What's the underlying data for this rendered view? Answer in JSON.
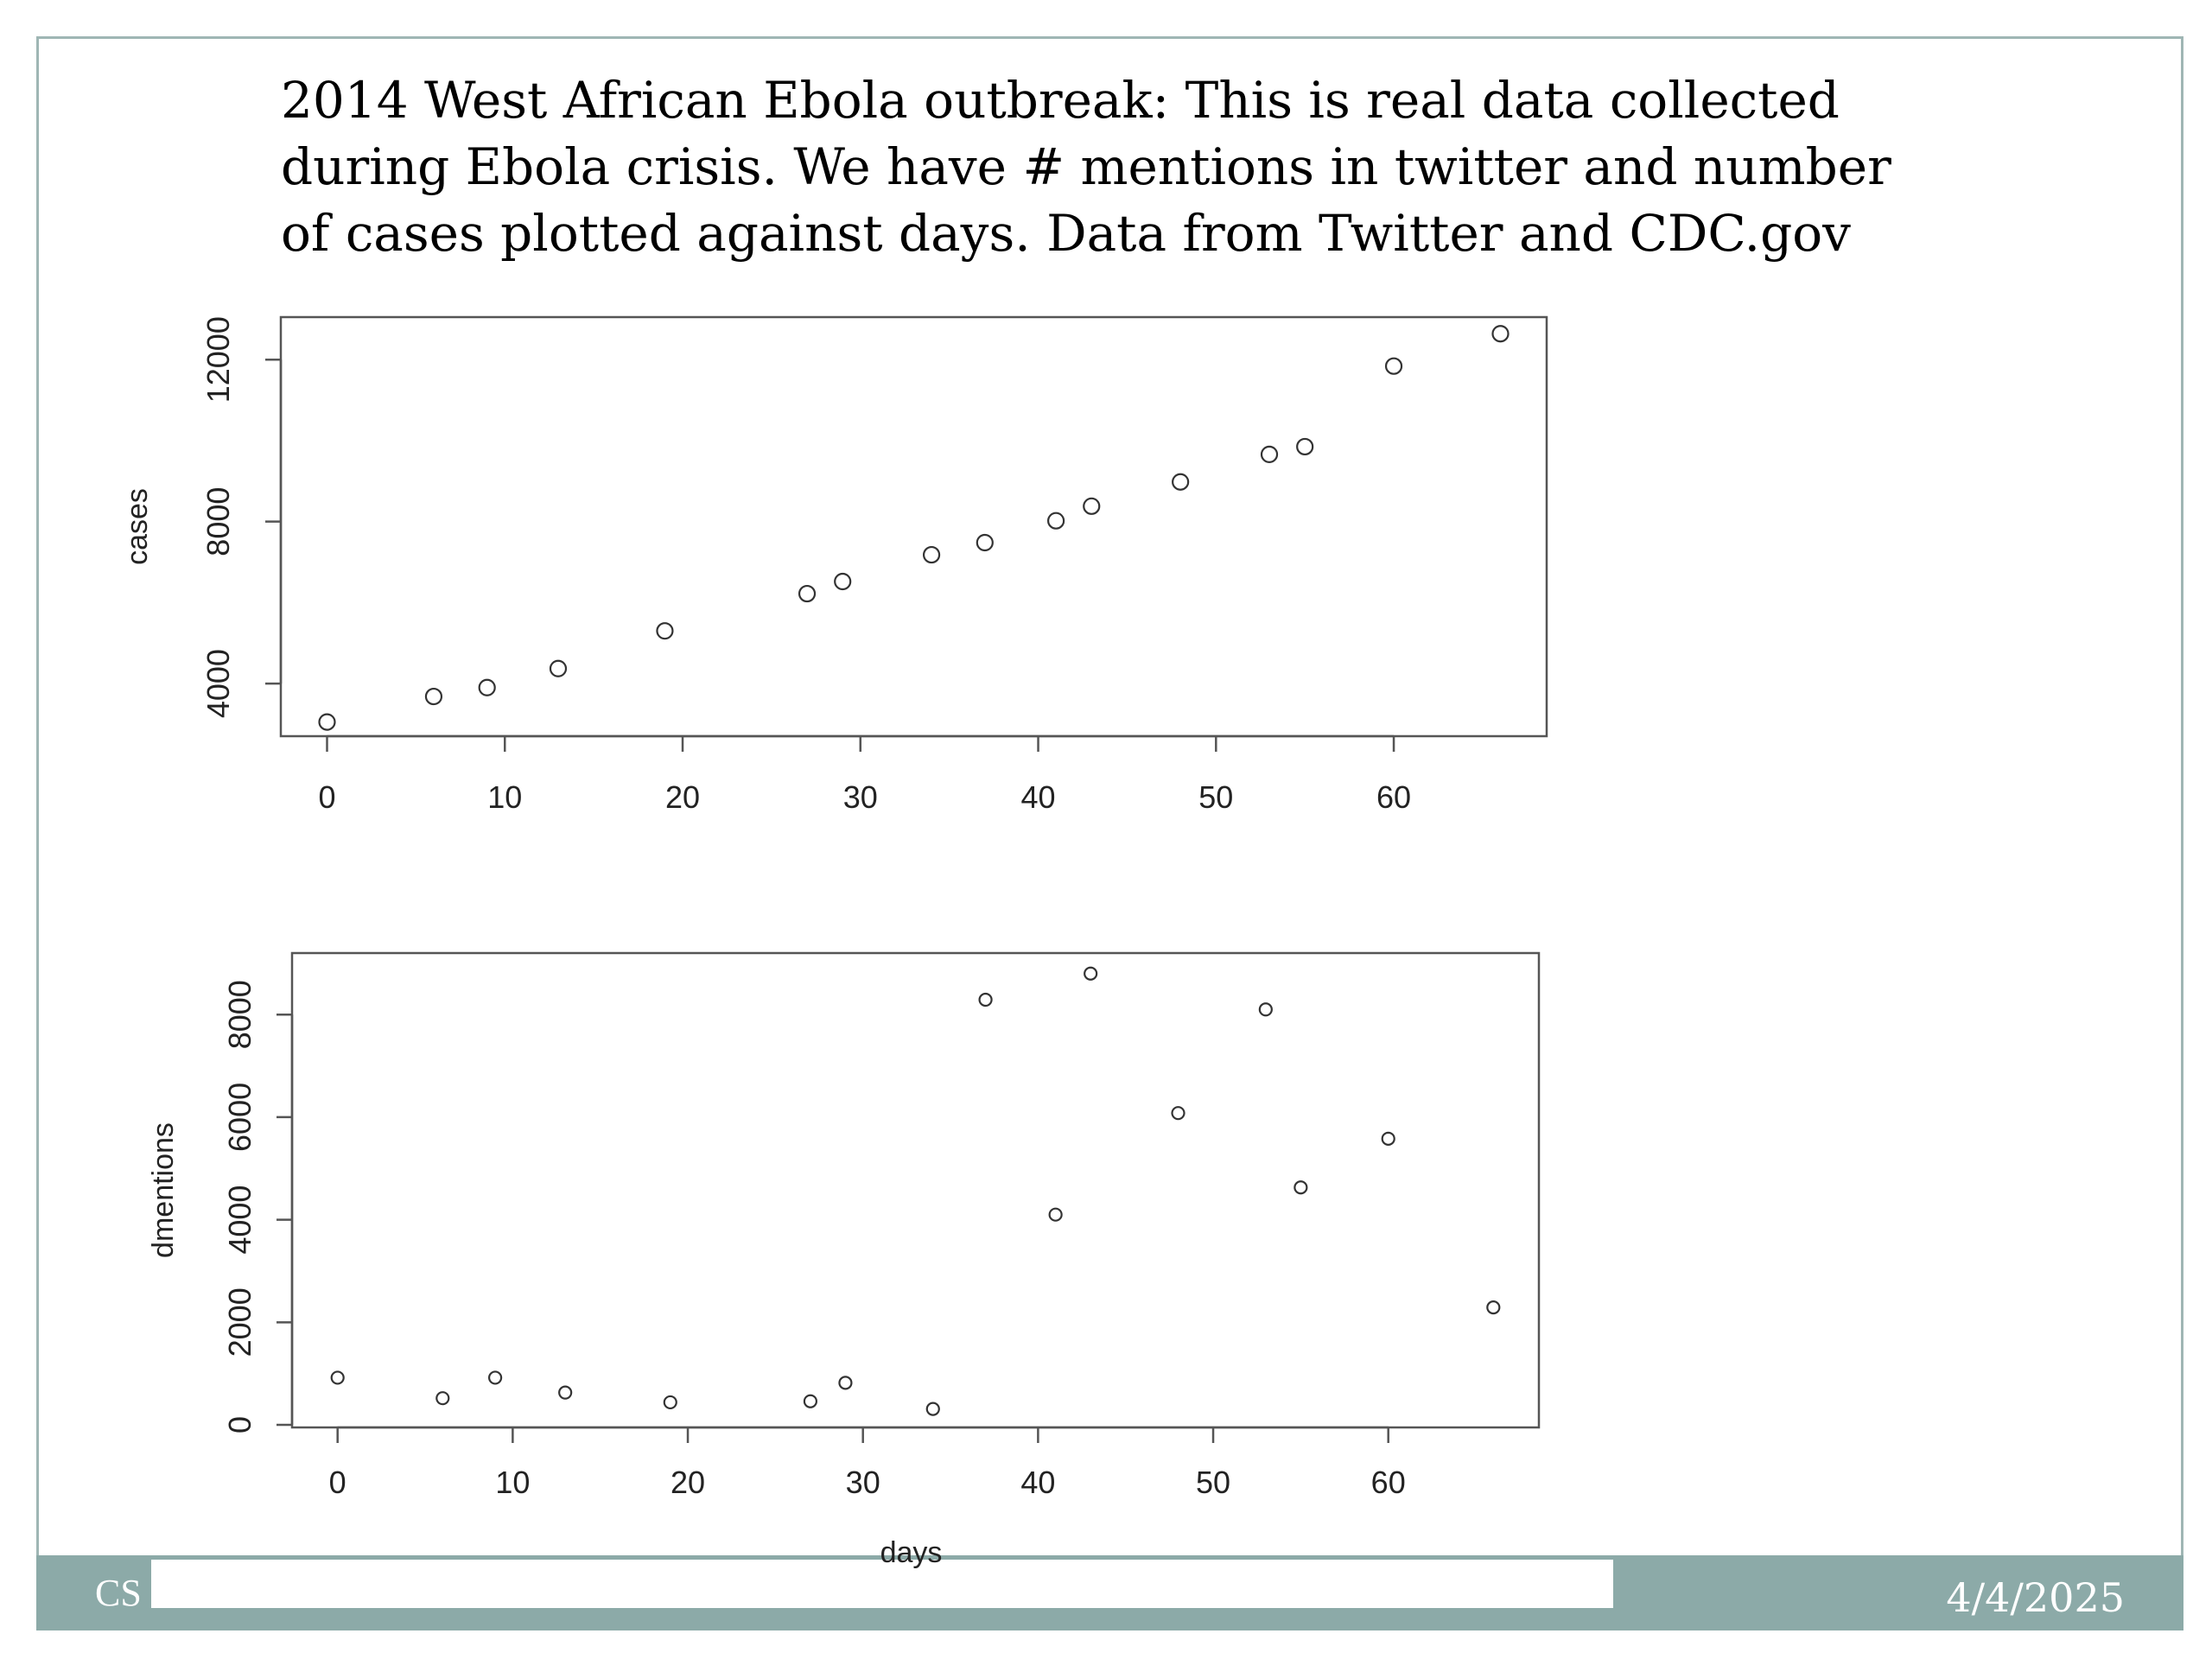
{
  "slide": {
    "title": "2014 West African Ebola outbreak: This is real data collected during Ebola crisis. We have # mentions in twitter and number of cases plotted against days. Data from Twitter and CDC.gov",
    "footer_left": "CS",
    "footer_date": "4/4/2025"
  },
  "colors": {
    "frame": "#9fb6b4",
    "footer": "#8caaa8",
    "points": "#333333"
  },
  "chart_data": [
    {
      "type": "scatter",
      "title": "",
      "xlabel": "",
      "ylabel": "cases",
      "xlim": [
        -2.6,
        68.6
      ],
      "ylim": [
        2700,
        13050
      ],
      "xticks": [
        0,
        10,
        20,
        30,
        40,
        50,
        60
      ],
      "yticks": [
        4000,
        8000,
        12000
      ],
      "grid": false,
      "x": [
        0,
        6,
        9,
        13,
        19,
        27,
        29,
        34,
        37,
        41,
        43,
        48,
        53,
        55,
        60,
        66
      ],
      "y": [
        3050,
        3680,
        3900,
        4370,
        5300,
        6220,
        6520,
        7180,
        7480,
        8020,
        8380,
        8980,
        9660,
        9850,
        11840,
        12640
      ]
    },
    {
      "type": "scatter",
      "title": "",
      "xlabel": "days",
      "ylabel": "dmentions",
      "xlim": [
        -2.6,
        68.6
      ],
      "ylim": [
        -50,
        9200
      ],
      "xticks": [
        0,
        10,
        20,
        30,
        40,
        50,
        60
      ],
      "yticks": [
        0,
        2000,
        4000,
        6000,
        8000
      ],
      "grid": false,
      "x": [
        0,
        6,
        9,
        13,
        19,
        27,
        29,
        34,
        37,
        41,
        43,
        48,
        53,
        55,
        60,
        66
      ],
      "y": [
        920,
        520,
        920,
        630,
        440,
        460,
        820,
        310,
        8290,
        4100,
        8800,
        6080,
        8100,
        4630,
        5580,
        2290
      ]
    }
  ]
}
